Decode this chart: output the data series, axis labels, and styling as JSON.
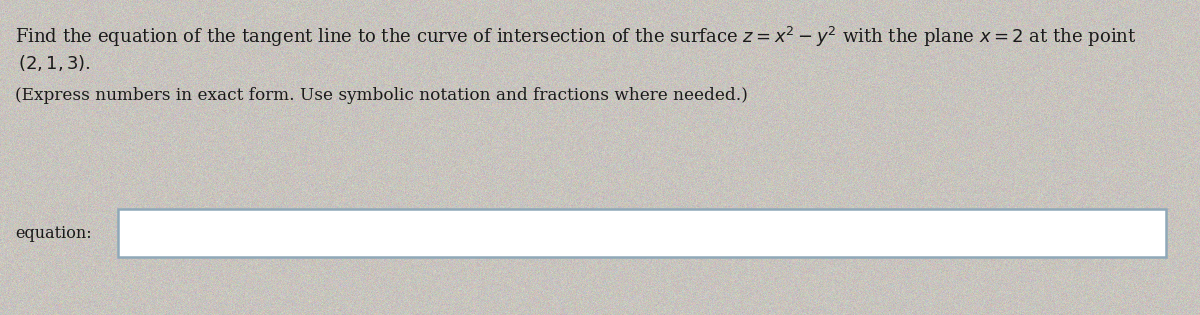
{
  "line1": "Find the equation of the tangent line to the curve of intersection of the surface $z = x^2 - y^2$ with the plane $x = 2$ at the point",
  "line2": "$(2, 1, 3)$.",
  "line3": "(Express numbers in exact form. Use symbolic notation and fractions where needed.)",
  "label": "equation:",
  "bg_color": "#c8c4be",
  "text_color": "#1a1a1a",
  "box_border_color": "#8fa8b8",
  "box_bg": "#ffffff",
  "font_size_main": 13.0,
  "font_size_sub": 12.2,
  "font_size_label": 11.5
}
